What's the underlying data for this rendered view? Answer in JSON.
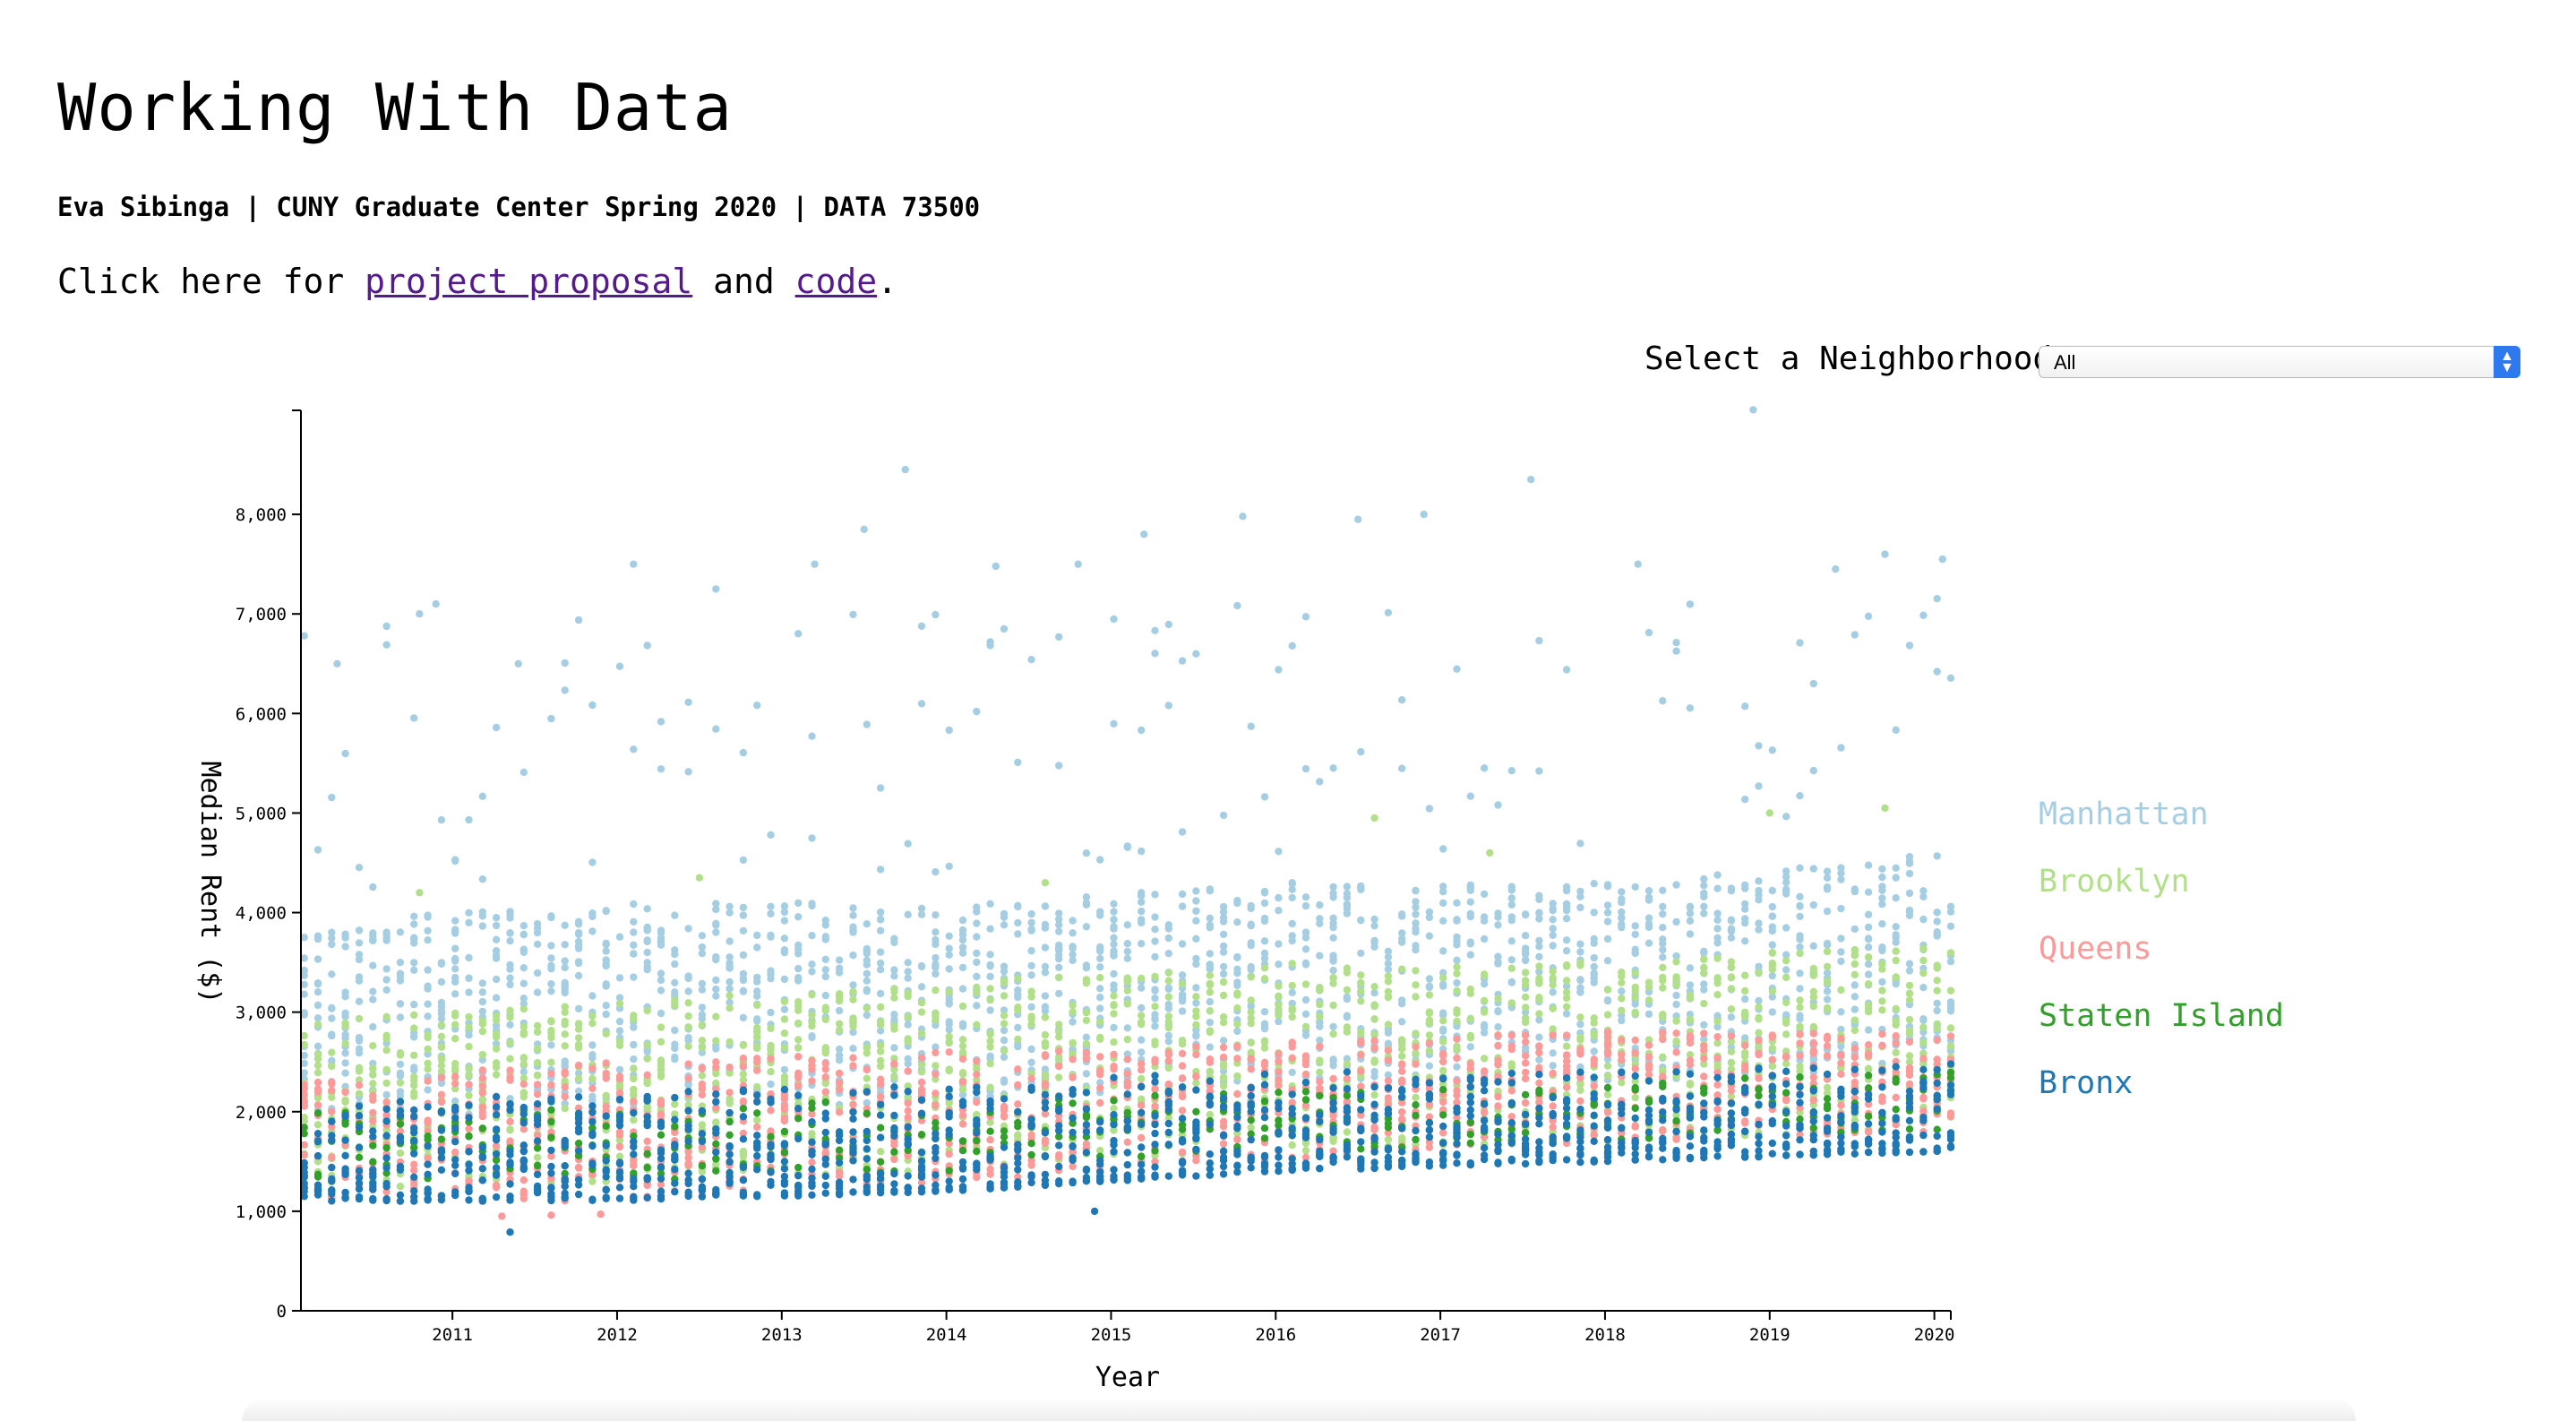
{
  "page": {
    "title": "Working With Data",
    "byline": "Eva Sibinga | CUNY Graduate Center Spring 2020 | DATA 73500",
    "links_prefix": "Click here for ",
    "proposal_link": "project proposal",
    "links_mid": " and ",
    "code_link": "code",
    "links_suffix": "."
  },
  "selector": {
    "label": "Select a Neighborhood",
    "value": "All"
  },
  "chart_data": {
    "type": "scatter",
    "xlabel": "Year",
    "ylabel": "Median Rent ($)",
    "xlim": [
      2010.08,
      2020.1
    ],
    "ylim": [
      0,
      9000
    ],
    "xticks": [
      2011,
      2012,
      2013,
      2014,
      2015,
      2016,
      2017,
      2018,
      2019,
      2020
    ],
    "yticks": [
      0,
      1000,
      2000,
      3000,
      4000,
      5000,
      6000,
      7000,
      8000
    ],
    "ytick_labels": [
      "0",
      "1,000",
      "2,000",
      "3,000",
      "4,000",
      "5,000",
      "6,000",
      "7,000",
      "8,000"
    ],
    "legend_position": "right",
    "grid": false,
    "series": [
      {
        "name": "Manhattan",
        "color": "#a6cee3",
        "typical_range_by_year": [
          [
            2010,
            1900,
            3900
          ],
          [
            2012,
            2000,
            4100
          ],
          [
            2014,
            2100,
            4100
          ],
          [
            2016,
            2300,
            4300
          ],
          [
            2018,
            2300,
            4300
          ],
          [
            2020,
            2400,
            4600
          ]
        ],
        "outliers": [
          [
            2010.1,
            6780
          ],
          [
            2010.3,
            6500
          ],
          [
            2010.8,
            7000
          ],
          [
            2010.9,
            7100
          ],
          [
            2011.4,
            6500
          ],
          [
            2012.1,
            7500
          ],
          [
            2012.6,
            7250
          ],
          [
            2013.2,
            7500
          ],
          [
            2013.5,
            7850
          ],
          [
            2013.75,
            8450
          ],
          [
            2014.3,
            7480
          ],
          [
            2014.8,
            7500
          ],
          [
            2015.2,
            7800
          ],
          [
            2015.8,
            7980
          ],
          [
            2016.5,
            7950
          ],
          [
            2016.9,
            8000
          ],
          [
            2017.55,
            8350
          ],
          [
            2018.2,
            7500
          ],
          [
            2018.9,
            9050
          ],
          [
            2019.4,
            7450
          ],
          [
            2019.7,
            7600
          ],
          [
            2020.05,
            7550
          ]
        ]
      },
      {
        "name": "Brooklyn",
        "color": "#b2df8a",
        "typical_range_by_year": [
          [
            2010,
            1200,
            2900
          ],
          [
            2012,
            1300,
            3100
          ],
          [
            2014,
            1400,
            3300
          ],
          [
            2016,
            1600,
            3500
          ],
          [
            2018,
            1700,
            3500
          ],
          [
            2020,
            1800,
            3700
          ]
        ],
        "outliers": [
          [
            2010.8,
            4200
          ],
          [
            2012.5,
            4350
          ],
          [
            2014.6,
            4300
          ],
          [
            2016.6,
            4950
          ],
          [
            2017.3,
            4600
          ],
          [
            2019.0,
            5000
          ],
          [
            2019.7,
            5050
          ]
        ]
      },
      {
        "name": "Queens",
        "color": "#fb9a99",
        "typical_range_by_year": [
          [
            2010,
            1100,
            2300
          ],
          [
            2012,
            1100,
            2500
          ],
          [
            2014,
            1300,
            2600
          ],
          [
            2016,
            1500,
            2700
          ],
          [
            2018,
            1700,
            2800
          ],
          [
            2020,
            1800,
            2800
          ]
        ],
        "outliers": [
          [
            2011.3,
            950
          ],
          [
            2011.6,
            960
          ],
          [
            2011.9,
            970
          ]
        ]
      },
      {
        "name": "Staten Island",
        "color": "#33a02c",
        "typical_range_by_year": [
          [
            2010,
            1300,
            2000
          ],
          [
            2012,
            1300,
            2100
          ],
          [
            2014,
            1400,
            2100
          ],
          [
            2016,
            1600,
            2200
          ],
          [
            2018,
            1700,
            2300
          ],
          [
            2020,
            1800,
            2400
          ]
        ],
        "outliers": []
      },
      {
        "name": "Bronx",
        "color": "#1f78b4",
        "typical_range_by_year": [
          [
            2010,
            1100,
            2100
          ],
          [
            2012,
            1100,
            2200
          ],
          [
            2014,
            1200,
            2300
          ],
          [
            2016,
            1400,
            2400
          ],
          [
            2018,
            1500,
            2400
          ],
          [
            2020,
            1600,
            2500
          ]
        ],
        "outliers": [
          [
            2011.35,
            790
          ],
          [
            2014.9,
            1000
          ]
        ]
      }
    ]
  }
}
